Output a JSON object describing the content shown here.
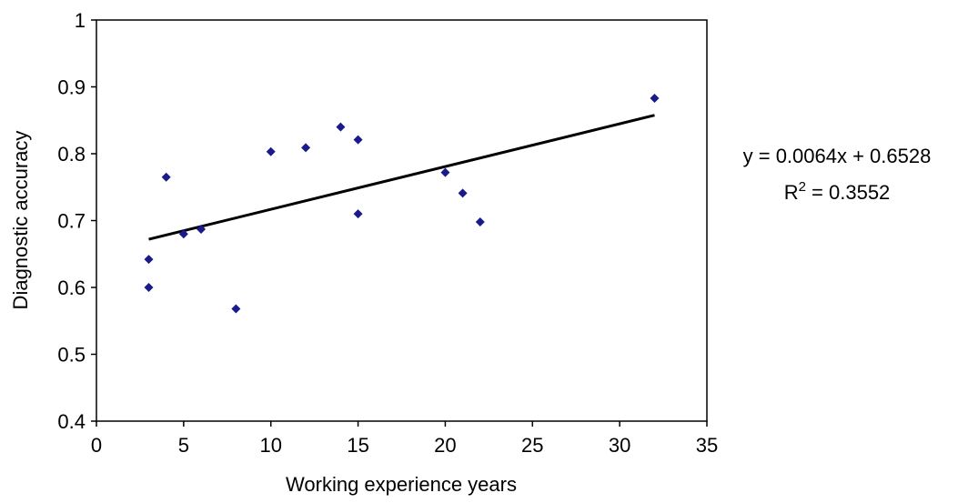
{
  "chart_data": {
    "type": "scatter",
    "title": "",
    "xlabel": "Working experience years",
    "ylabel": "Diagnostic accuracy",
    "xlim": [
      0,
      35
    ],
    "ylim": [
      0.4,
      1
    ],
    "x_ticks": [
      0,
      5,
      10,
      15,
      20,
      25,
      30,
      35
    ],
    "y_ticks": [
      0.4,
      0.5,
      0.6,
      0.7,
      0.8,
      0.9,
      1
    ],
    "x_tick_labels": [
      "0",
      "5",
      "10",
      "15",
      "20",
      "25",
      "30",
      "35"
    ],
    "y_tick_labels": [
      "0.4",
      "0.5",
      "0.6",
      "0.7",
      "0.8",
      "0.9",
      "1"
    ],
    "grid": false,
    "legend": "none",
    "marker_color": "#1a1a8c",
    "points": [
      {
        "x": 3,
        "y": 0.6
      },
      {
        "x": 3,
        "y": 0.642
      },
      {
        "x": 4,
        "y": 0.765
      },
      {
        "x": 5,
        "y": 0.68
      },
      {
        "x": 6,
        "y": 0.687
      },
      {
        "x": 8,
        "y": 0.568
      },
      {
        "x": 10,
        "y": 0.803
      },
      {
        "x": 12,
        "y": 0.809
      },
      {
        "x": 14,
        "y": 0.84
      },
      {
        "x": 15,
        "y": 0.821
      },
      {
        "x": 15,
        "y": 0.71
      },
      {
        "x": 20,
        "y": 0.772
      },
      {
        "x": 21,
        "y": 0.741
      },
      {
        "x": 22,
        "y": 0.698
      },
      {
        "x": 32,
        "y": 0.883
      }
    ],
    "trendline": {
      "slope": 0.0064,
      "intercept": 0.6528,
      "x_range": [
        3,
        32
      ],
      "color": "#000000"
    },
    "annotations": {
      "equation": "y = 0.0064x + 0.6528",
      "r2_base": "R",
      "r2_sup": "2",
      "r2_value": " = 0.3552"
    }
  }
}
